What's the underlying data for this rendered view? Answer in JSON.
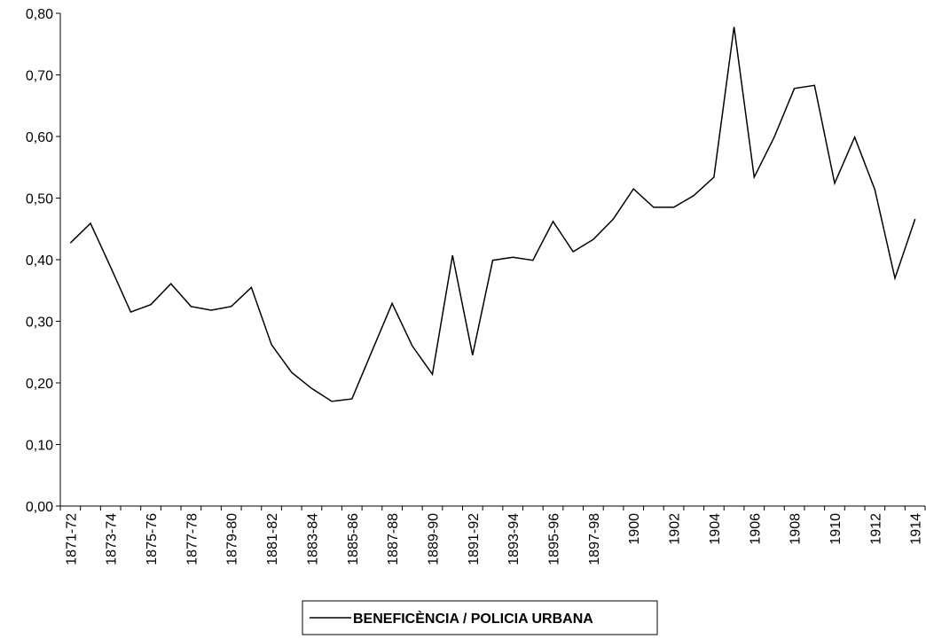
{
  "chart_data": {
    "type": "line",
    "categories": [
      "1871-72",
      null,
      "1873-74",
      null,
      "1875-76",
      null,
      "1877-78",
      null,
      "1879-80",
      null,
      "1881-82",
      null,
      "1883-84",
      null,
      "1885-86",
      null,
      "1887-88",
      null,
      "1889-90",
      null,
      "1891-92",
      null,
      "1893-94",
      null,
      "1895-96",
      null,
      "1897-98",
      null,
      "1900",
      null,
      "1902",
      null,
      "1904",
      null,
      "1906",
      null,
      "1908",
      null,
      "1910",
      null,
      "1912",
      null,
      "1914"
    ],
    "series": [
      {
        "name": "BENEFICÈNCIA / POLICIA URBANA",
        "color": "#000000",
        "values": [
          0.427,
          0.459,
          0.388,
          0.315,
          0.327,
          0.361,
          0.324,
          0.318,
          0.324,
          0.355,
          0.262,
          0.217,
          0.191,
          0.17,
          0.174,
          0.252,
          0.329,
          0.26,
          0.214,
          0.407,
          0.245,
          0.399,
          0.404,
          0.399,
          0.462,
          0.413,
          0.433,
          0.466,
          0.515,
          0.485,
          0.485,
          0.504,
          0.534,
          0.778,
          0.534,
          0.599,
          0.678,
          0.683,
          0.524,
          0.599,
          0.514,
          0.37,
          0.466
        ]
      }
    ],
    "ylim": [
      0,
      0.8
    ],
    "yticks": [
      {
        "value": 0,
        "label": "0,00"
      },
      {
        "value": 0.1,
        "label": "0,10"
      },
      {
        "value": 0.2,
        "label": "0,20"
      },
      {
        "value": 0.3,
        "label": "0,30"
      },
      {
        "value": 0.4,
        "label": "0,40"
      },
      {
        "value": 0.5,
        "label": "0,50"
      },
      {
        "value": 0.6,
        "label": "0,60"
      },
      {
        "value": 0.7,
        "label": "0,70"
      },
      {
        "value": 0.8,
        "label": "0,80"
      }
    ],
    "grid": false,
    "legend": "bottom"
  }
}
